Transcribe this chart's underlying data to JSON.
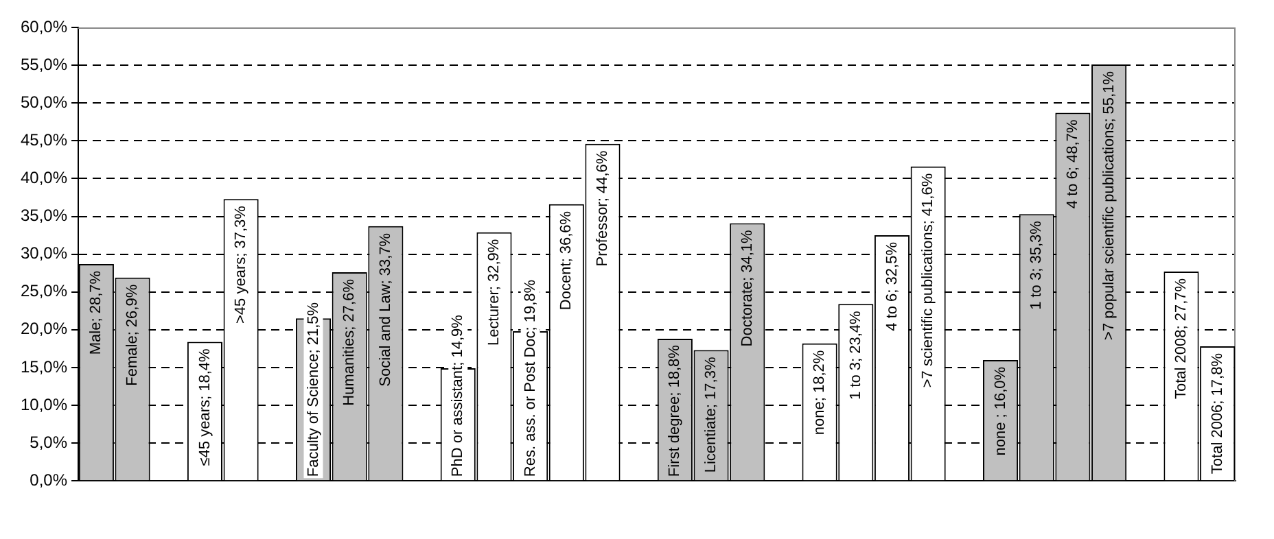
{
  "chart_data": {
    "type": "bar",
    "categories": [
      null,
      null,
      null,
      null,
      null,
      null,
      null,
      null,
      null,
      null,
      null,
      null,
      null,
      null,
      null,
      null,
      null,
      null,
      null,
      null,
      null,
      null,
      null,
      null,
      null,
      null,
      null,
      null,
      null,
      null,
      null,
      null
    ],
    "values": [
      28.7,
      26.9,
      null,
      18.4,
      37.3,
      null,
      21.5,
      27.6,
      33.7,
      null,
      14.9,
      32.9,
      19.8,
      36.6,
      44.6,
      null,
      18.8,
      17.3,
      34.1,
      null,
      18.2,
      23.4,
      32.5,
      41.6,
      null,
      16.0,
      35.3,
      48.7,
      55.1,
      null,
      27.7,
      17.8
    ],
    "value_labels": [
      "Male; 28,7%",
      "Female; 26,9%",
      null,
      "≤45 years; 18,4%",
      ">45 years; 37,3%",
      null,
      "Faculty of Science; 21,5%",
      "Humanities; 27,6%",
      "Social and Law; 33,7%",
      null,
      "PhD or assistant; 14,9%",
      "Lecturer; 32,9%",
      "Res. ass. or Post Doc; 19,8%",
      "Docent; 36,6%",
      "Professor; 44,6%",
      null,
      "First degree; 18,8%",
      "Licentiate; 17,3%",
      "Doctorate; 34,1%",
      null,
      "none; 18,2%",
      "1 to 3; 23,4%",
      "4 to 6; 32,5%",
      ">7 scientific publications; 41,6%",
      null,
      "none ; 16,0%",
      "1 to 3; 35,3%",
      "4 to 6; 48,7%",
      ">7 popular scientific publications; 55,1%",
      null,
      "Total 2008; 27,7%",
      "Total 2006; 17,8%"
    ],
    "colors": [
      "#c0c0c0",
      "#c0c0c0",
      "#ffffff",
      "#ffffff",
      "#ffffff",
      "#ffffff",
      "#c0c0c0",
      "#c0c0c0",
      "#c0c0c0",
      "#ffffff",
      "#ffffff",
      "#ffffff",
      "#ffffff",
      "#ffffff",
      "#ffffff",
      "#ffffff",
      "#c0c0c0",
      "#c0c0c0",
      "#c0c0c0",
      "#ffffff",
      "#ffffff",
      "#ffffff",
      "#ffffff",
      "#ffffff",
      "#ffffff",
      "#c0c0c0",
      "#c0c0c0",
      "#c0c0c0",
      "#c0c0c0",
      "#ffffff",
      "#ffffff",
      "#ffffff"
    ],
    "ylim": [
      0,
      60
    ],
    "yticks": [
      {
        "value": 0,
        "label": "0,0%"
      },
      {
        "value": 5,
        "label": "5,0%"
      },
      {
        "value": 10,
        "label": "10,0%"
      },
      {
        "value": 15,
        "label": "15,0%"
      },
      {
        "value": 20,
        "label": "20,0%"
      },
      {
        "value": 25,
        "label": "25,0%"
      },
      {
        "value": 30,
        "label": "30,0%"
      },
      {
        "value": 35,
        "label": "35,0%"
      },
      {
        "value": 40,
        "label": "40,0%"
      },
      {
        "value": 45,
        "label": "45,0%"
      },
      {
        "value": 50,
        "label": "50,0%"
      },
      {
        "value": 55,
        "label": "55,0%"
      },
      {
        "value": 60,
        "label": "60,0%"
      }
    ],
    "grid": "y"
  }
}
